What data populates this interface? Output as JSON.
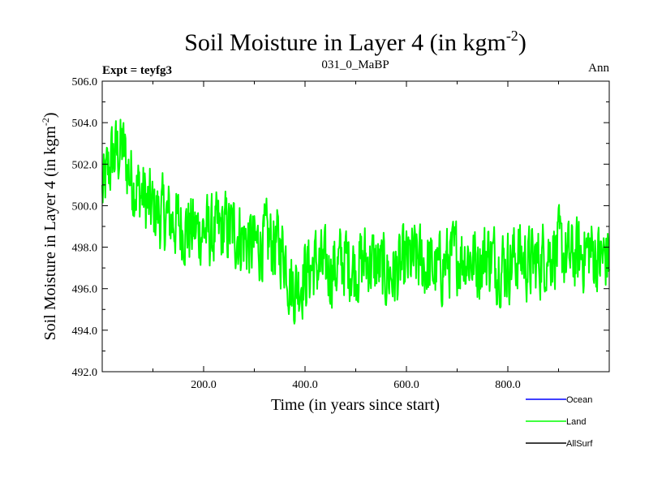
{
  "chart_data": {
    "type": "line",
    "title": "Soil Moisture in Layer 4 (in kgm",
    "title_sup": "-2",
    "title_close": ")",
    "subtitle_left": "Expt = teyfg3",
    "subtitle_center": "031_0_MaBP",
    "subtitle_right": "Ann",
    "xlabel": "Time (in years since start)",
    "ylabel": "Soil Moisture in Layer 4 (in kgm",
    "ylabel_sup": "-2",
    "ylabel_close": ")",
    "xlim": [
      0,
      1000
    ],
    "ylim": [
      492,
      506
    ],
    "xticks": [
      200,
      400,
      600,
      800
    ],
    "xtick_labels": [
      "200.0",
      "400.0",
      "600.0",
      "800.0"
    ],
    "yticks": [
      492,
      494,
      496,
      498,
      500,
      502,
      504,
      506
    ],
    "ytick_labels": [
      "492.0",
      "494.0",
      "496.0",
      "498.0",
      "500.0",
      "502.0",
      "504.0",
      "506.0"
    ],
    "series": [
      {
        "name": "Land",
        "color": "#00ff00",
        "x": [
          0,
          10,
          20,
          30,
          40,
          50,
          60,
          70,
          80,
          90,
          100,
          120,
          140,
          160,
          180,
          200,
          220,
          240,
          260,
          280,
          300,
          320,
          340,
          360,
          370,
          380,
          400,
          420,
          440,
          460,
          480,
          500,
          520,
          540,
          560,
          580,
          600,
          620,
          640,
          660,
          680,
          700,
          720,
          740,
          760,
          780,
          800,
          820,
          840,
          860,
          880,
          900,
          920,
          940,
          960,
          980,
          1000
        ],
        "values": [
          500.5,
          501.5,
          502.3,
          502.6,
          502.8,
          501.8,
          501.2,
          500.8,
          500.5,
          500.0,
          499.8,
          499.5,
          499.3,
          499.0,
          498.8,
          498.8,
          498.6,
          498.9,
          498.8,
          498.4,
          498.0,
          498.3,
          498.2,
          497.8,
          496.3,
          496.0,
          496.7,
          497.2,
          496.9,
          497.0,
          497.4,
          497.0,
          497.4,
          497.1,
          496.7,
          496.7,
          497.2,
          497.4,
          497.1,
          496.8,
          497.3,
          497.6,
          497.6,
          497.2,
          497.7,
          497.2,
          497.2,
          497.6,
          497.2,
          497.3,
          497.8,
          497.9,
          497.4,
          497.6,
          497.9,
          497.4,
          497.6
        ]
      },
      {
        "name": "Ocean",
        "color": "#0000ff",
        "values": []
      },
      {
        "name": "AllSurf",
        "color": "#000000",
        "values": []
      }
    ],
    "legend": {
      "position": "bottom-right",
      "entries": [
        {
          "label": "Ocean",
          "color": "#0000ff"
        },
        {
          "label": "Land",
          "color": "#00ff00"
        },
        {
          "label": "AllSurf",
          "color": "#000000"
        }
      ]
    }
  }
}
